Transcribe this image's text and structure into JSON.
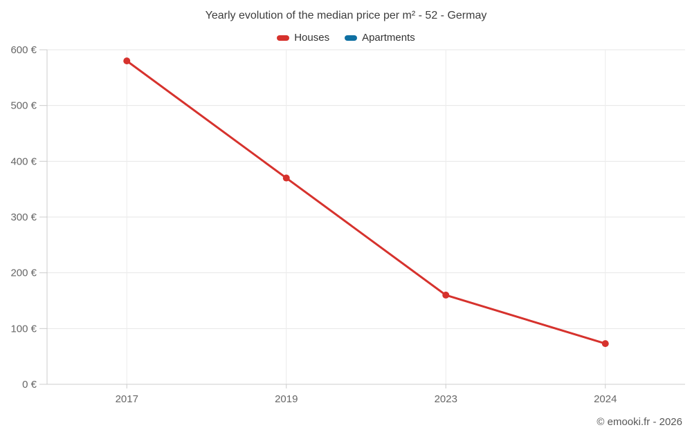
{
  "header": {
    "title": "Yearly evolution of the median price per m² - 52 - Germay"
  },
  "footer": {
    "copyright": "© emooki.fr - 2026"
  },
  "colors": {
    "houses": "#d6322d",
    "apartments": "#0f70a2",
    "grid": "#e6e6e6",
    "axis": "#cccccc",
    "axis_text": "#666666"
  },
  "chart_data": {
    "type": "line",
    "title": "Yearly evolution of the median price per m² - 52 - Germay",
    "categories": [
      "2017",
      "2019",
      "2023",
      "2024"
    ],
    "series": [
      {
        "name": "Houses",
        "color": "#d6322d",
        "values": [
          580,
          370,
          160,
          73
        ]
      },
      {
        "name": "Apartments",
        "color": "#0f70a2",
        "values": []
      }
    ],
    "xlabel": "",
    "ylabel": "",
    "ylim": [
      0,
      600
    ],
    "ytick_step": 100,
    "ytick_suffix": " €",
    "grid": true,
    "legend_position": "top"
  }
}
